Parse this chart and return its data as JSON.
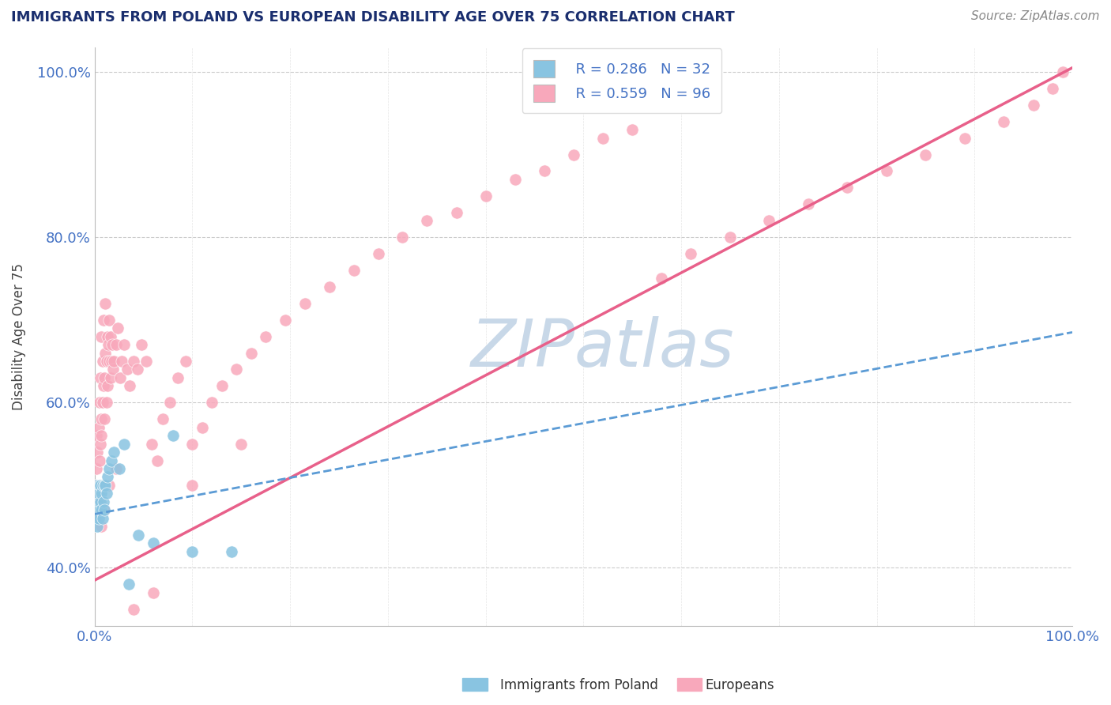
{
  "title": "IMMIGRANTS FROM POLAND VS EUROPEAN DISABILITY AGE OVER 75 CORRELATION CHART",
  "source": "Source: ZipAtlas.com",
  "ylabel": "Disability Age Over 75",
  "xlim": [
    0.0,
    1.0
  ],
  "ylim": [
    0.33,
    1.03
  ],
  "legend_r_poland": "R = 0.286",
  "legend_n_poland": "N = 32",
  "legend_r_european": "R = 0.559",
  "legend_n_european": "N = 96",
  "color_poland": "#89c4e1",
  "color_european": "#f8a8bb",
  "color_poland_line": "#5b9bd5",
  "color_european_line": "#e8608a",
  "color_axis_text": "#4472c4",
  "color_title": "#1a2e6e",
  "color_grid": "#cccccc",
  "color_source": "#888888",
  "color_watermark": "#c8d8e8",
  "ytick_vals": [
    0.4,
    0.6,
    0.8,
    1.0
  ],
  "ytick_labels": [
    "40.0%",
    "60.0%",
    "80.0%",
    "100.0%"
  ],
  "xtick_vals": [
    0.0,
    0.1,
    0.2,
    0.3,
    0.4,
    0.5,
    0.6,
    0.7,
    0.8,
    0.9,
    1.0
  ],
  "xtick_labels": [
    "0.0%",
    "",
    "",
    "",
    "",
    "",
    "",
    "",
    "",
    "",
    "100.0%"
  ],
  "poland_x": [
    0.001,
    0.002,
    0.002,
    0.003,
    0.003,
    0.004,
    0.004,
    0.005,
    0.005,
    0.006,
    0.006,
    0.007,
    0.007,
    0.008,
    0.008,
    0.009,
    0.01,
    0.01,
    0.011,
    0.012,
    0.013,
    0.015,
    0.017,
    0.02,
    0.025,
    0.03,
    0.035,
    0.045,
    0.06,
    0.08,
    0.1,
    0.14
  ],
  "poland_y": [
    0.46,
    0.47,
    0.5,
    0.48,
    0.45,
    0.49,
    0.46,
    0.5,
    0.47,
    0.48,
    0.5,
    0.47,
    0.49,
    0.5,
    0.46,
    0.48,
    0.5,
    0.47,
    0.5,
    0.49,
    0.51,
    0.52,
    0.53,
    0.54,
    0.52,
    0.55,
    0.38,
    0.44,
    0.43,
    0.56,
    0.42,
    0.42
  ],
  "european_x": [
    0.001,
    0.002,
    0.002,
    0.003,
    0.003,
    0.004,
    0.004,
    0.005,
    0.005,
    0.006,
    0.006,
    0.007,
    0.007,
    0.007,
    0.008,
    0.008,
    0.009,
    0.009,
    0.01,
    0.01,
    0.011,
    0.011,
    0.012,
    0.012,
    0.013,
    0.013,
    0.014,
    0.015,
    0.015,
    0.016,
    0.016,
    0.017,
    0.018,
    0.019,
    0.02,
    0.022,
    0.024,
    0.026,
    0.028,
    0.03,
    0.033,
    0.036,
    0.04,
    0.044,
    0.048,
    0.053,
    0.058,
    0.064,
    0.07,
    0.077,
    0.085,
    0.093,
    0.1,
    0.11,
    0.12,
    0.13,
    0.145,
    0.16,
    0.175,
    0.195,
    0.215,
    0.24,
    0.265,
    0.29,
    0.315,
    0.34,
    0.37,
    0.4,
    0.43,
    0.46,
    0.49,
    0.52,
    0.55,
    0.58,
    0.61,
    0.65,
    0.69,
    0.73,
    0.77,
    0.81,
    0.85,
    0.89,
    0.93,
    0.96,
    0.98,
    0.99,
    0.002,
    0.004,
    0.007,
    0.01,
    0.015,
    0.022,
    0.04,
    0.06,
    0.1,
    0.15
  ],
  "european_y": [
    0.5,
    0.52,
    0.56,
    0.54,
    0.48,
    0.57,
    0.5,
    0.6,
    0.53,
    0.55,
    0.63,
    0.56,
    0.68,
    0.58,
    0.6,
    0.65,
    0.62,
    0.7,
    0.58,
    0.63,
    0.66,
    0.72,
    0.6,
    0.65,
    0.68,
    0.62,
    0.67,
    0.65,
    0.7,
    0.63,
    0.68,
    0.65,
    0.67,
    0.64,
    0.65,
    0.67,
    0.69,
    0.63,
    0.65,
    0.67,
    0.64,
    0.62,
    0.65,
    0.64,
    0.67,
    0.65,
    0.55,
    0.53,
    0.58,
    0.6,
    0.63,
    0.65,
    0.55,
    0.57,
    0.6,
    0.62,
    0.64,
    0.66,
    0.68,
    0.7,
    0.72,
    0.74,
    0.76,
    0.78,
    0.8,
    0.82,
    0.83,
    0.85,
    0.87,
    0.88,
    0.9,
    0.92,
    0.93,
    0.75,
    0.78,
    0.8,
    0.82,
    0.84,
    0.86,
    0.88,
    0.9,
    0.92,
    0.94,
    0.96,
    0.98,
    1.0,
    0.46,
    0.48,
    0.45,
    0.47,
    0.5,
    0.52,
    0.35,
    0.37,
    0.5,
    0.55
  ],
  "line_poland_x0": 0.0,
  "line_poland_x1": 1.0,
  "line_poland_y0": 0.465,
  "line_poland_y1": 0.685,
  "line_european_x0": 0.0,
  "line_european_x1": 1.0,
  "line_european_y0": 0.385,
  "line_european_y1": 1.005
}
